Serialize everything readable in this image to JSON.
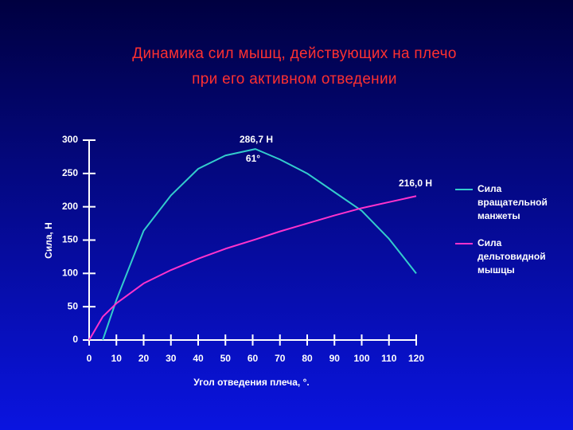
{
  "chart_data": {
    "type": "line",
    "title": [
      "Динамика сил мышц, действующих на плечо",
      "при его активном отведении"
    ],
    "x_label": "Угол отведения плеча, °.",
    "y_label": "Сила, Н",
    "x": [
      0,
      5,
      10,
      20,
      30,
      40,
      50,
      61,
      70,
      80,
      90,
      100,
      110,
      120
    ],
    "series": [
      {
        "name": "Сила вращательной манжеты",
        "color": "#33cccc",
        "values": [
          null,
          0,
          60,
          164,
          217,
          257,
          277,
          286.7,
          271,
          250,
          222,
          194,
          152,
          100
        ]
      },
      {
        "name": "Сила дельтовидной мышцы",
        "color": "#ff33cc",
        "values": [
          0,
          35,
          55,
          85,
          105,
          122,
          137,
          151,
          163,
          175,
          187,
          198,
          207,
          216
        ]
      }
    ],
    "annotations": [
      "286,7 Н",
      "61°",
      "216,0 Н"
    ],
    "xlim": [
      0,
      120
    ],
    "xticks": [
      0,
      10,
      20,
      30,
      40,
      50,
      60,
      70,
      80,
      90,
      100,
      110,
      120
    ],
    "ylim": [
      0,
      300
    ],
    "yticks": [
      0,
      50,
      100,
      150,
      200,
      250,
      300
    ],
    "legend": "right",
    "grid": false
  }
}
